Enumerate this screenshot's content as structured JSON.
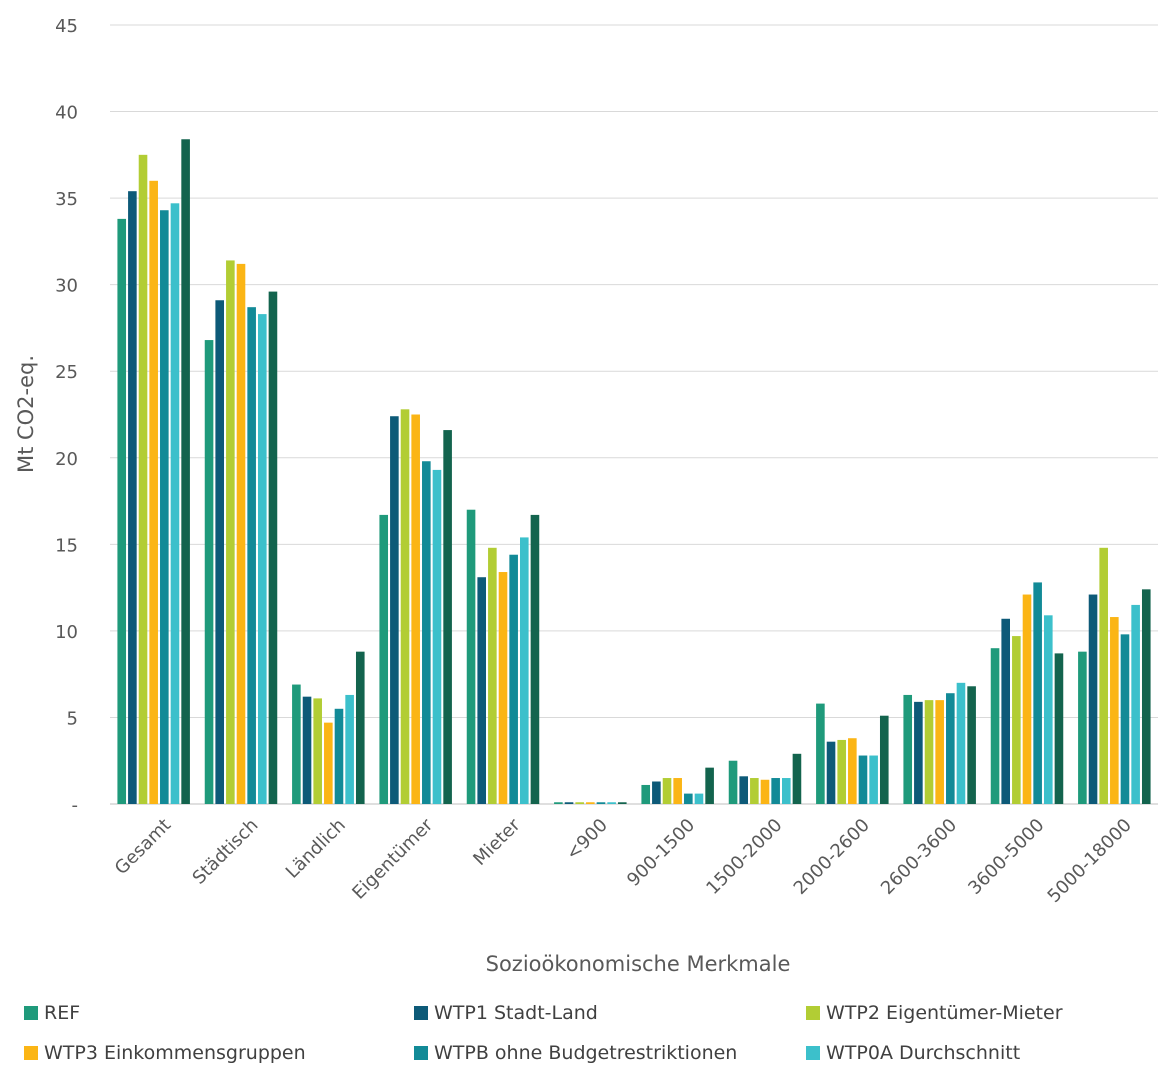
{
  "chart_data": {
    "type": "bar",
    "xlabel": "Sozioökonomische Merkmale",
    "ylabel": "Mt CO2-eq.",
    "ylim": [
      0,
      45
    ],
    "yticks": [
      {
        "value": 0,
        "label": "-"
      },
      {
        "value": 5,
        "label": "5"
      },
      {
        "value": 10,
        "label": "10"
      },
      {
        "value": 15,
        "label": "15"
      },
      {
        "value": 20,
        "label": "20"
      },
      {
        "value": 25,
        "label": "25"
      },
      {
        "value": 30,
        "label": "30"
      },
      {
        "value": 35,
        "label": "35"
      },
      {
        "value": 40,
        "label": "40"
      },
      {
        "value": 45,
        "label": "45"
      }
    ],
    "grid": true,
    "legend_position": "bottom",
    "categories": [
      "Gesamt",
      "Städtisch",
      "Ländlich",
      "Eigentümer",
      "Mieter",
      "<900",
      "900-1500",
      "1500-2000",
      "2000-2600",
      "2600-3600",
      "3600-5000",
      "5000-18000"
    ],
    "series": [
      {
        "name": "REF",
        "color": "#1f9a7b",
        "values": [
          33.8,
          26.8,
          6.9,
          16.7,
          17.0,
          0.1,
          1.1,
          2.5,
          5.8,
          6.3,
          9.0,
          8.8
        ]
      },
      {
        "name": "WTP1 Stadt-Land",
        "color": "#0d5a78",
        "values": [
          35.4,
          29.1,
          6.2,
          22.4,
          13.1,
          0.1,
          1.3,
          1.6,
          3.6,
          5.9,
          10.7,
          12.1
        ]
      },
      {
        "name": "WTP2 Eigentümer-Mieter",
        "color": "#b2cd34",
        "values": [
          37.5,
          31.4,
          6.1,
          22.8,
          14.8,
          0.1,
          1.5,
          1.5,
          3.7,
          6.0,
          9.7,
          14.8
        ]
      },
      {
        "name": "WTP3 Einkommensgruppen",
        "color": "#fbb515",
        "values": [
          36.0,
          31.2,
          4.7,
          22.5,
          13.4,
          0.1,
          1.5,
          1.4,
          3.8,
          6.0,
          12.1,
          10.8
        ]
      },
      {
        "name": "WTPB ohne Budgetrestriktionen",
        "color": "#128a97",
        "values": [
          34.3,
          28.7,
          5.5,
          19.8,
          14.4,
          0.1,
          0.6,
          1.5,
          2.8,
          6.4,
          12.8,
          9.8
        ]
      },
      {
        "name": "WTP0A Durchschnitt",
        "color": "#3cc0cb",
        "values": [
          34.7,
          28.3,
          6.3,
          19.3,
          15.4,
          0.1,
          0.6,
          1.5,
          2.8,
          7.0,
          10.9,
          11.5
        ]
      },
      {
        "name": "",
        "color": "#13644e",
        "values": [
          38.4,
          29.6,
          8.8,
          21.6,
          16.7,
          0.1,
          2.1,
          2.9,
          5.1,
          6.8,
          8.7,
          12.4
        ]
      }
    ]
  }
}
